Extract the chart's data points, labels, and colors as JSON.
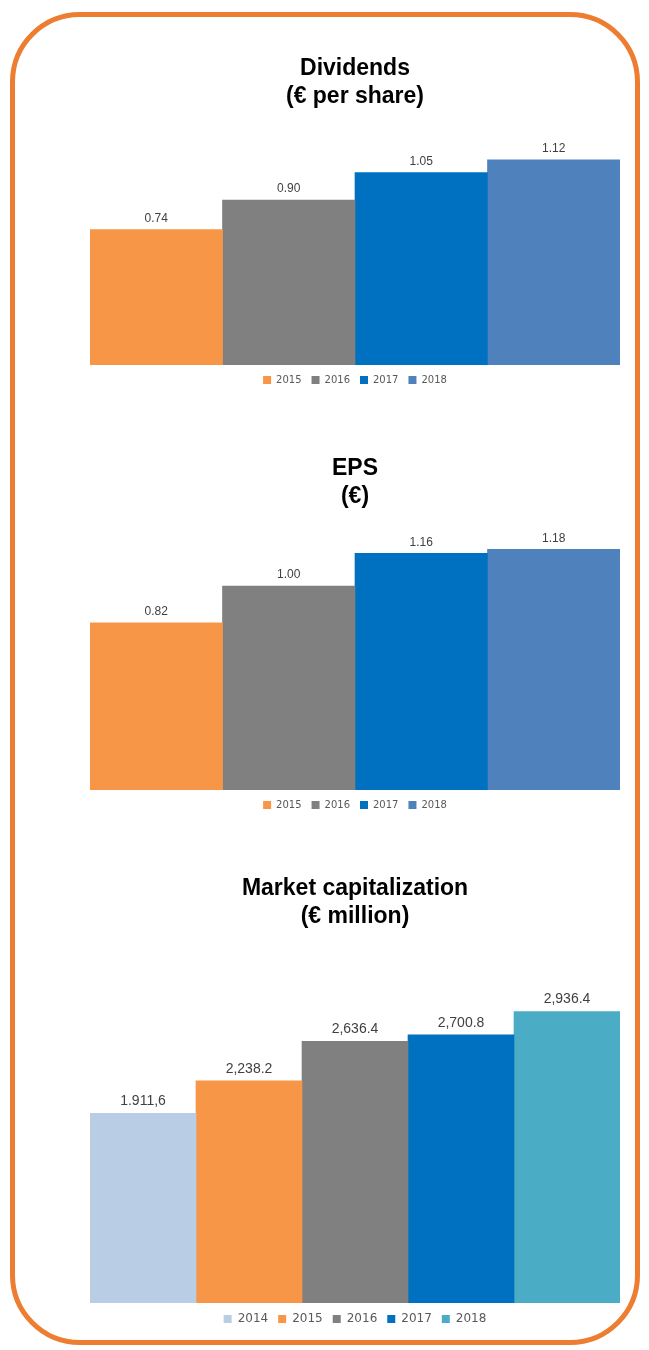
{
  "chart_data": [
    {
      "type": "bar",
      "title": "Dividends\n(€ per share)",
      "categories": [
        null
      ],
      "legend": "bottom",
      "tick_labels": false,
      "series": [
        {
          "name": "2015",
          "color": "#f79646",
          "values": [
            0.74
          ],
          "value_labels": [
            "0.74"
          ]
        },
        {
          "name": "2016",
          "color": "#808080",
          "values": [
            0.9
          ],
          "value_labels": [
            "0.90"
          ]
        },
        {
          "name": "2017",
          "color": "#0070c0",
          "values": [
            1.05
          ],
          "value_labels": [
            "1.05"
          ]
        },
        {
          "name": "2018",
          "color": "#4f81bd",
          "values": [
            1.12
          ],
          "value_labels": [
            "1.12"
          ]
        }
      ]
    },
    {
      "type": "bar",
      "title": "EPS\n(€)",
      "categories": [
        null
      ],
      "legend": "bottom",
      "tick_labels": false,
      "series": [
        {
          "name": "2015",
          "color": "#f79646",
          "values": [
            0.82
          ],
          "value_labels": [
            "0.82"
          ]
        },
        {
          "name": "2016",
          "color": "#808080",
          "values": [
            1.0
          ],
          "value_labels": [
            "1.00"
          ]
        },
        {
          "name": "2017",
          "color": "#0070c0",
          "values": [
            1.16
          ],
          "value_labels": [
            "1.16"
          ]
        },
        {
          "name": "2018",
          "color": "#4f81bd",
          "values": [
            1.18
          ],
          "value_labels": [
            "1.18"
          ]
        }
      ]
    },
    {
      "type": "bar",
      "title": "Market capitalization\n(€ million)",
      "categories": [
        null
      ],
      "legend": "bottom",
      "tick_labels": false,
      "series": [
        {
          "name": "2014",
          "color": "#b9cde5",
          "values": [
            1911.6
          ],
          "value_labels": [
            "1.911,6"
          ]
        },
        {
          "name": "2015",
          "color": "#f79646",
          "values": [
            2238.2
          ],
          "value_labels": [
            "2,238.2"
          ]
        },
        {
          "name": "2016",
          "color": "#808080",
          "values": [
            2636.4
          ],
          "value_labels": [
            "2,636.4"
          ]
        },
        {
          "name": "2017",
          "color": "#0070c0",
          "values": [
            2700.8
          ],
          "value_labels": [
            "2,700.8"
          ]
        },
        {
          "name": "2018",
          "color": "#4bacc6",
          "values": [
            2936.4
          ],
          "value_labels": [
            "2,936.4"
          ]
        }
      ]
    }
  ]
}
